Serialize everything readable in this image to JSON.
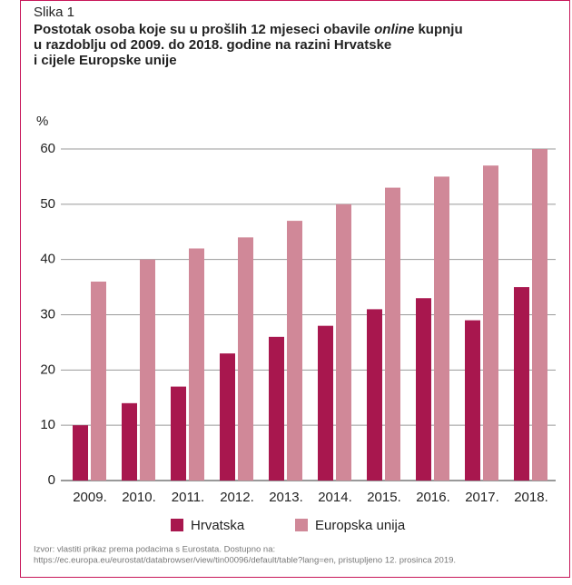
{
  "chart_data": {
    "type": "bar",
    "figure_label": "Slika 1",
    "title": [
      "Postotak osoba koje su u prošlih 12 mjeseci obavile ",
      "online",
      " kupnju",
      "u razdoblju od 2009. do 2018. godine na razini Hrvatske",
      "i cijele Europske unije"
    ],
    "y_label": "%",
    "categories": [
      "2009.",
      "2010.",
      "2011.",
      "2012.",
      "2013.",
      "2014.",
      "2015.",
      "2016.",
      "2017.",
      "2018."
    ],
    "series": [
      {
        "name": "Hrvatska",
        "color": "#a8174e",
        "values": [
          10,
          14,
          17,
          23,
          26,
          28,
          31,
          33,
          29,
          35
        ]
      },
      {
        "name": "Europska unija",
        "color": "#d08898",
        "values": [
          36,
          40,
          42,
          44,
          47,
          50,
          53,
          55,
          57,
          60
        ]
      }
    ],
    "ylim": [
      0,
      60
    ],
    "yticks": [
      0,
      10,
      20,
      30,
      40,
      50,
      60
    ],
    "grid": true,
    "legend": "bottom",
    "source": [
      "Izvor: vlastiti prikaz prema podacima s Eurostata. Dostupno na:",
      "https://ec.europa.eu/eurostat/databrowser/view/tin00096/default/table?lang=en, pristupljeno 12. prosinca 2019."
    ]
  }
}
